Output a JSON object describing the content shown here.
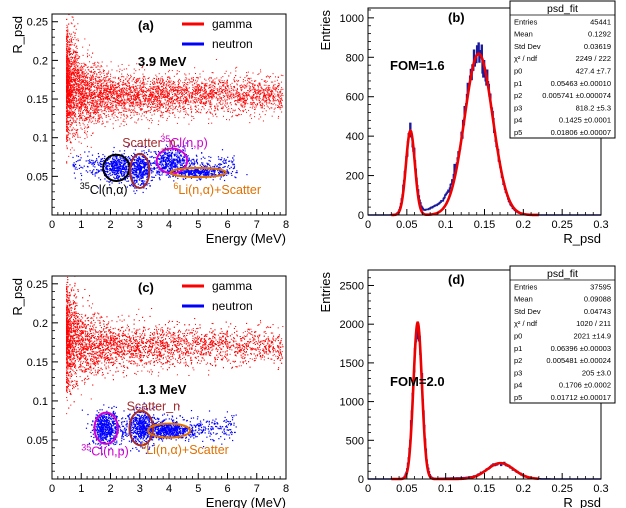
{
  "chart_data": [
    {
      "panel_label": "(a)",
      "type": "scatter",
      "xlabel": "Energy (MeV)",
      "ylabel": "R_psd",
      "xlim": [
        0,
        8
      ],
      "ylim": [
        0.0,
        0.26
      ],
      "xticks": [
        "0",
        "1",
        "2",
        "3",
        "4",
        "5",
        "6",
        "7",
        "8"
      ],
      "yticks": [
        "0.05",
        "0.1",
        "0.15",
        "0.2",
        "0.25"
      ],
      "energy_label": "3.9 MeV",
      "series": [
        {
          "name": "gamma",
          "color": "#ff0000",
          "center_y": 0.155,
          "x_range": [
            0.5,
            7.9
          ]
        },
        {
          "name": "neutron",
          "color": "#0000ff",
          "center_y": 0.065,
          "x_range": [
            0.7,
            6.3
          ]
        }
      ],
      "annotations": [
        {
          "text_pre": "",
          "sup": "",
          "text": "Scatter_n",
          "color": "#a52a2a",
          "x": 2.4,
          "y": 0.088
        },
        {
          "text_pre": "",
          "sup": "35",
          "text": "Cl(n,p)",
          "color": "#d000d0",
          "x": 3.7,
          "y": 0.088
        },
        {
          "text_pre": "",
          "sup": "35",
          "text": "Cl(n,α)",
          "color": "#000000",
          "x": 0.95,
          "y": 0.027
        },
        {
          "text_pre": "",
          "sup": "6",
          "text": "Li(n,α)+Scatter",
          "color": "#e07000",
          "x": 4.15,
          "y": 0.027
        }
      ],
      "ellipses": [
        {
          "color": "#000000",
          "cx": 2.2,
          "cy": 0.061,
          "rx": 0.45,
          "ry": 0.017
        },
        {
          "color": "#a52a2a",
          "cx": 3.0,
          "cy": 0.057,
          "rx": 0.33,
          "ry": 0.022
        },
        {
          "color": "#d000d0",
          "cx": 4.1,
          "cy": 0.07,
          "rx": 0.52,
          "ry": 0.016
        },
        {
          "color": "#e07000",
          "cx": 5.0,
          "cy": 0.055,
          "rx": 0.95,
          "ry": 0.006
        }
      ]
    },
    {
      "panel_label": "(b)",
      "type": "line",
      "xlabel": "R_psd",
      "ylabel": "Entries",
      "xlim": [
        0,
        0.3
      ],
      "ylim": [
        0,
        1050
      ],
      "xticks": [
        "0",
        "0.05",
        "0.1",
        "0.15",
        "0.2",
        "0.25",
        "0.3"
      ],
      "yticks": [
        "0",
        "200",
        "400",
        "600",
        "800",
        "1000"
      ],
      "fom": "FOM=1.6",
      "fit": {
        "a1": 427.4,
        "mu1": 0.05463,
        "s1": 0.005741,
        "a2": 818.2,
        "mu2": 0.1425,
        "s2": 0.01806
      },
      "stats": {
        "title": "psd_fit",
        "rows": [
          [
            "Entries",
            "45441"
          ],
          [
            "Mean",
            "0.1292"
          ],
          [
            "Std Dev",
            "0.03619"
          ],
          [
            "χ² / ndf",
            "2249 / 222"
          ],
          [
            "p0",
            "427.4 ±7.7"
          ],
          [
            "p1",
            "0.05463 ±0.00010"
          ],
          [
            "p2",
            "0.005741 ±0.000074"
          ],
          [
            "p3",
            "818.2 ±5.3"
          ],
          [
            "p4",
            "0.1425 ±0.0001"
          ],
          [
            "p5",
            "0.01806 ±0.00007"
          ]
        ]
      }
    },
    {
      "panel_label": "(c)",
      "type": "scatter",
      "xlabel": "Energy (MeV)",
      "ylabel": "R_psd",
      "xlim": [
        0,
        8
      ],
      "ylim": [
        0.0,
        0.26
      ],
      "xticks": [
        "0",
        "1",
        "2",
        "3",
        "4",
        "5",
        "6",
        "7",
        "8"
      ],
      "yticks": [
        "0.05",
        "0.1",
        "0.15",
        "0.2",
        "0.25"
      ],
      "energy_label": "1.3 MeV",
      "series": [
        {
          "name": "gamma",
          "color": "#ff0000",
          "center_y": 0.17,
          "x_range": [
            0.5,
            7.9
          ]
        },
        {
          "name": "neutron",
          "color": "#0000ff",
          "center_y": 0.065,
          "x_range": [
            1.5,
            6.3
          ]
        }
      ],
      "annotations": [
        {
          "text_pre": "",
          "sup": "",
          "text": "Scatter_n",
          "color": "#a52a2a",
          "x": 2.55,
          "y": 0.088
        },
        {
          "text_pre": "",
          "sup": "35",
          "text": "Cl(n,p)",
          "color": "#d000d0",
          "x": 1.0,
          "y": 0.03
        },
        {
          "text_pre": "",
          "sup": "6",
          "text": "Li(n,α)+Scatter",
          "color": "#e07000",
          "x": 3.05,
          "y": 0.032
        }
      ],
      "ellipses": [
        {
          "color": "#d000d0",
          "cx": 1.85,
          "cy": 0.065,
          "rx": 0.4,
          "ry": 0.02
        },
        {
          "color": "#a52a2a",
          "cx": 3.05,
          "cy": 0.065,
          "rx": 0.4,
          "ry": 0.022
        },
        {
          "color": "#e07000",
          "cx": 4.0,
          "cy": 0.062,
          "rx": 0.72,
          "ry": 0.009
        }
      ]
    },
    {
      "panel_label": "(d)",
      "type": "line",
      "xlabel": "R_psd",
      "ylabel": "Entries",
      "xlim": [
        0,
        0.3
      ],
      "ylim": [
        0,
        2700
      ],
      "xticks": [
        "0",
        "0.05",
        "0.1",
        "0.15",
        "0.2",
        "0.25",
        "0.3"
      ],
      "yticks": [
        "0",
        "500",
        "1000",
        "1500",
        "2000",
        "2500"
      ],
      "fom": "FOM=2.0",
      "fit": {
        "a1": 2021,
        "mu1": 0.06396,
        "s1": 0.005481,
        "a2": 205,
        "mu2": 0.1706,
        "s2": 0.01712
      },
      "stats": {
        "title": "psd_fit",
        "rows": [
          [
            "Entries",
            "37595"
          ],
          [
            "Mean",
            "0.09088"
          ],
          [
            "Std Dev",
            "0.04743"
          ],
          [
            "χ² / ndf",
            "1020 / 211"
          ],
          [
            "p0",
            "2021 ±14.9"
          ],
          [
            "p1",
            "0.06396 ±0.00003"
          ],
          [
            "p2",
            "0.005481 ±0.00024"
          ],
          [
            "p3",
            "205 ±3.0"
          ],
          [
            "p4",
            "0.1706 ±0.0002"
          ],
          [
            "p5",
            "0.01712 ±0.00017"
          ]
        ]
      }
    }
  ]
}
